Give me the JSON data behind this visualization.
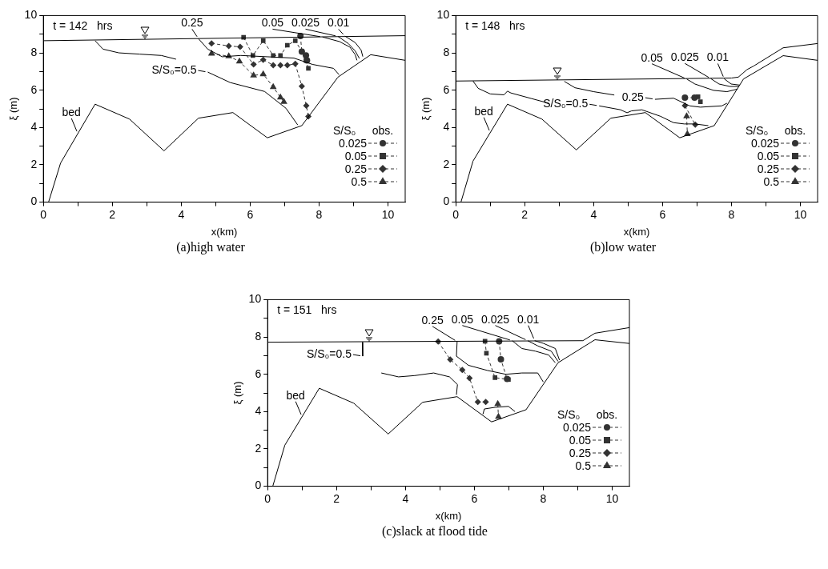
{
  "chart_data": [
    {
      "type": "line",
      "title": "(a)high water",
      "xlabel": "x(km)",
      "ylabel": "ξ (m)",
      "legend_title": "S/S₀",
      "legend": "bottom right",
      "xlim": [
        0,
        10.5
      ],
      "ylim": [
        0,
        10
      ],
      "xticks": [
        0,
        {
          "value": 1,
          "label": null
        },
        2,
        {
          "value": 3,
          "label": null
        },
        4,
        {
          "value": 5,
          "label": null
        },
        6,
        {
          "value": 7,
          "label": null
        },
        8,
        {
          "value": 9,
          "label": null
        },
        10
      ],
      "yticks": [
        0,
        {
          "value": 1,
          "label": null
        },
        2,
        {
          "value": 3,
          "label": null
        },
        4,
        {
          "value": 5,
          "label": null
        },
        6,
        {
          "value": 7,
          "label": null
        },
        8,
        {
          "value": 9,
          "label": null
        },
        10
      ],
      "annotations": [
        "t = 142   hrs",
        "obs.",
        {
          "text": "0.25",
          "x": 4.5,
          "y": 8.76
        },
        {
          "text": "0.05",
          "x": 8.1,
          "y": 8.85
        },
        {
          "text": "0.025",
          "x": 8.55,
          "y": 8.88
        },
        {
          "text": "0.01",
          "x": 8.75,
          "y": 8.9
        },
        {
          "text": "S/S₀=0.5",
          "x": 4.77,
          "y": 6.97
        },
        {
          "text": "bed",
          "x": 1.0,
          "y": 3.675
        }
      ],
      "series": [
        {
          "color": "#000000",
          "marker": "none",
          "line_style": "solid",
          "x": [
            0,
            10.5
          ],
          "values": [
            8.65,
            8.92
          ]
        },
        {
          "color": "#000000",
          "marker": "none",
          "line_style": "solid",
          "x": [
            0.15,
            0.5,
            1.5,
            2.5,
            3.5,
            4.5,
            5.5,
            6.5,
            7.5,
            8.55,
            9.5,
            10.5
          ],
          "values": [
            0,
            2.1,
            5.25,
            4.45,
            2.75,
            4.5,
            4.8,
            3.45,
            4.1,
            6.7,
            7.9,
            7.6
          ]
        },
        {
          "color": "#000000",
          "marker": "none",
          "line_style": "solid",
          "x": [
            1.5,
            1.73,
            2.19,
            2.8,
            3.42,
            3.85,
            null,
            4.77,
            5.42,
            6.42,
            7.04,
            7.38
          ],
          "values": [
            8.65,
            8.2,
            8.0,
            7.93,
            7.86,
            7.66,
            null,
            6.97,
            6.41,
            5.93,
            5.03,
            4.14
          ]
        },
        {
          "color": "#000000",
          "marker": "none",
          "line_style": "solid",
          "x": [
            4.5,
            4.77,
            5.19,
            5.73,
            6.5,
            7.27,
            7.81,
            8.42,
            8.58
          ],
          "values": [
            8.76,
            8.2,
            7.79,
            7.86,
            7.79,
            7.72,
            7.38,
            7.17,
            6.83
          ]
        },
        {
          "color": "#000000",
          "marker": "none",
          "line_style": "solid",
          "x": [
            8.1,
            8.6,
            8.9,
            9.05,
            9.1
          ],
          "values": [
            8.85,
            8.6,
            8.3,
            7.9,
            7.6
          ]
        },
        {
          "color": "#000000",
          "marker": "none",
          "line_style": "solid",
          "x": [
            8.55,
            8.85,
            9.05,
            9.17
          ],
          "values": [
            8.88,
            8.5,
            8.1,
            7.7
          ]
        },
        {
          "color": "#000000",
          "marker": "none",
          "line_style": "solid",
          "x": [
            8.75,
            9.05,
            9.22,
            9.27
          ],
          "values": [
            8.9,
            8.55,
            8.15,
            7.8
          ]
        },
        {
          "name": "0.025",
          "color": "#333333",
          "marker": "circle",
          "line_style": "dashed",
          "x": [
            7.46,
            7.5,
            7.62,
            7.65
          ],
          "values": [
            8.9,
            8.07,
            7.86,
            7.59
          ]
        },
        {
          "name": "0.05",
          "color": "#333333",
          "marker": "square",
          "line_style": "dashed",
          "x": [
            5.81,
            6.08,
            6.38,
            6.67,
            6.88,
            7.08,
            7.31,
            7.5,
            7.62,
            7.69
          ],
          "values": [
            8.83,
            7.86,
            8.65,
            7.86,
            7.86,
            8.41,
            8.65,
            8.07,
            7.59,
            7.17
          ]
        },
        {
          "name": "0.25",
          "color": "#333333",
          "marker": "diamond",
          "line_style": "dashed",
          "x": [
            4.88,
            5.38,
            5.71,
            6.1,
            6.38,
            6.67,
            6.88,
            7.08,
            7.31,
            7.5,
            7.63,
            7.69
          ],
          "values": [
            8.51,
            8.37,
            8.32,
            7.38,
            7.63,
            7.34,
            7.34,
            7.34,
            7.41,
            6.21,
            5.17,
            4.59
          ]
        },
        {
          "name": "0.5",
          "color": "#333333",
          "marker": "triangle",
          "line_style": "dashed",
          "x": [
            4.88,
            5.38,
            5.69,
            6.1,
            6.38,
            6.67,
            6.88,
            6.98
          ],
          "values": [
            7.96,
            7.82,
            7.54,
            6.79,
            6.86,
            6.17,
            5.61,
            5.38
          ]
        }
      ]
    },
    {
      "type": "line",
      "title": "(b)low water",
      "xlabel": "x(km)",
      "ylabel": "ξ (m)",
      "legend_title": "S/S₀",
      "legend": "bottom right",
      "xlim": [
        0,
        10.5
      ],
      "ylim": [
        0,
        10
      ],
      "xticks": [
        0,
        {
          "value": 1,
          "label": null
        },
        2,
        {
          "value": 3,
          "label": null
        },
        4,
        {
          "value": 5,
          "label": null
        },
        6,
        {
          "value": 7,
          "label": null
        },
        8,
        {
          "value": 9,
          "label": null
        },
        10
      ],
      "yticks": [
        0,
        {
          "value": 1,
          "label": null
        },
        2,
        {
          "value": 3,
          "label": null
        },
        4,
        {
          "value": 5,
          "label": null
        },
        6,
        {
          "value": 7,
          "label": null
        },
        8,
        {
          "value": 9,
          "label": null
        },
        10
      ],
      "annotations": [
        "t = 148   hrs",
        "obs.",
        {
          "text": "0.25",
          "x": 5.78,
          "y": 5.51
        },
        {
          "text": "0.05",
          "x": 6.7,
          "y": 6.6
        },
        {
          "text": "0.025",
          "x": 7.4,
          "y": 6.62
        },
        {
          "text": "0.01",
          "x": 7.79,
          "y": 6.61
        },
        {
          "text": "S/S₀=0.5",
          "x": 4.16,
          "y": 5.16
        },
        {
          "text": "bed",
          "x": 1.0,
          "y": 3.725
        }
      ],
      "series": [
        {
          "color": "#000000",
          "marker": "none",
          "line_style": "solid",
          "x": [
            0,
            8.0,
            8.2,
            8.45,
            8.65,
            9.5,
            10.5
          ],
          "values": [
            6.49,
            6.65,
            6.7,
            7.1,
            7.3,
            8.27,
            8.5
          ]
        },
        {
          "color": "#000000",
          "marker": "none",
          "line_style": "solid",
          "x": [
            0.15,
            0.5,
            1.5,
            2.5,
            3.5,
            4.5,
            5.5,
            6.5,
            7.5,
            8.35,
            9.5,
            10.5
          ],
          "values": [
            0,
            2.2,
            5.25,
            4.45,
            2.8,
            4.5,
            4.8,
            3.45,
            4.1,
            6.6,
            7.85,
            7.6
          ]
        },
        {
          "color": "#000000",
          "marker": "none",
          "line_style": "solid",
          "x": [
            0.5,
            0.65,
            1.0,
            1.4,
            1.5,
            1.6,
            2.2,
            2.7,
            null,
            4.16,
            4.78,
            4.97,
            5.1,
            5.4,
            5.94,
            6.32,
            6.63,
            6.94,
            7.33
          ],
          "values": [
            6.49,
            6.1,
            5.8,
            5.75,
            5.95,
            5.85,
            5.55,
            5.3,
            null,
            5.16,
            4.95,
            4.79,
            4.89,
            4.95,
            4.6,
            4.26,
            4.19,
            4.19,
            4.1
          ]
        },
        {
          "color": "#000000",
          "marker": "none",
          "line_style": "solid",
          "x": [
            3.15,
            3.46,
            4.0,
            4.6,
            null,
            5.78,
            6.32,
            6.79,
            7.1,
            7.72,
            7.87
          ],
          "values": [
            6.47,
            6.13,
            5.92,
            5.74,
            null,
            5.51,
            5.57,
            5.16,
            5.09,
            5.16,
            5.3
          ]
        },
        {
          "color": "#000000",
          "marker": "none",
          "line_style": "solid",
          "x": [
            6.7,
            6.94,
            7.48,
            7.87,
            8.18
          ],
          "values": [
            6.6,
            6.33,
            5.99,
            5.92,
            6.06
          ]
        },
        {
          "color": "#000000",
          "marker": "none",
          "line_style": "solid",
          "x": [
            7.4,
            7.64,
            7.95,
            8.22
          ],
          "values": [
            6.62,
            6.33,
            6.2,
            6.2
          ]
        },
        {
          "color": "#000000",
          "marker": "none",
          "line_style": "solid",
          "x": [
            7.79,
            7.99,
            8.25
          ],
          "values": [
            6.61,
            6.33,
            6.27
          ]
        },
        {
          "name": "0.025",
          "color": "#333333",
          "marker": "circle",
          "line_style": "dashed",
          "x": [
            6.65,
            6.93
          ],
          "values": [
            5.6,
            5.6
          ]
        },
        {
          "name": "0.05",
          "color": "#333333",
          "marker": "square",
          "line_style": "dashed",
          "x": [
            7.03,
            7.1
          ],
          "values": [
            5.65,
            5.38
          ]
        },
        {
          "name": "0.25",
          "color": "#333333",
          "marker": "diamond",
          "line_style": "dashed",
          "x": [
            6.65,
            6.95
          ],
          "values": [
            5.17,
            4.15
          ]
        },
        {
          "name": "0.5",
          "color": "#333333",
          "marker": "triangle",
          "line_style": "dashed",
          "x": [
            6.7,
            6.72
          ],
          "values": [
            4.6,
            3.65
          ]
        }
      ]
    },
    {
      "type": "line",
      "title": "(c)slack at flood tide",
      "xlabel": "x(km)",
      "ylabel": "ξ (m)",
      "legend_title": "S/S₀",
      "legend": "bottom right",
      "xlim": [
        0,
        10.5
      ],
      "ylim": [
        0,
        10
      ],
      "xticks": [
        0,
        {
          "value": 1,
          "label": null
        },
        2,
        {
          "value": 3,
          "label": null
        },
        4,
        {
          "value": 5,
          "label": null
        },
        6,
        {
          "value": 7,
          "label": null
        },
        8,
        {
          "value": 9,
          "label": null
        },
        10
      ],
      "yticks": [
        0,
        {
          "value": 1,
          "label": null
        },
        2,
        {
          "value": 3,
          "label": null
        },
        4,
        {
          "value": 5,
          "label": null
        },
        6,
        {
          "value": 7,
          "label": null
        },
        8,
        {
          "value": 9,
          "label": null
        },
        10
      ],
      "annotations": [
        "t = 151   hrs",
        "obs.",
        {
          "text": "0.25",
          "x": 5.5,
          "y": 7.75
        },
        {
          "text": "0.05",
          "x": 7.1,
          "y": 7.8
        },
        {
          "text": "0.025",
          "x": 7.55,
          "y": 7.8
        },
        {
          "text": "0.01",
          "x": 7.75,
          "y": 7.8
        },
        {
          "text": "S/S₀=0.5",
          "x": 2.76,
          "y": 6.97
        },
        {
          "text": "bed",
          "x": 1.0,
          "y": 3.725
        }
      ],
      "series": [
        {
          "color": "#000000",
          "marker": "none",
          "line_style": "solid",
          "x": [
            0,
            9.15,
            9.5,
            10.5
          ],
          "values": [
            7.72,
            7.8,
            8.2,
            8.5
          ]
        },
        {
          "color": "#000000",
          "marker": "none",
          "line_style": "solid",
          "x": [
            0.15,
            0.5,
            1.5,
            2.5,
            3.5,
            4.5,
            5.5,
            6.5,
            7.5,
            8.43,
            9.5,
            10.5
          ],
          "values": [
            0,
            2.2,
            5.25,
            4.45,
            2.8,
            4.5,
            4.8,
            3.45,
            4.1,
            6.62,
            7.85,
            7.65
          ]
        },
        {
          "color": "#000000",
          "marker": "none",
          "line_style": "solid",
          "x": [
            2.75,
            2.76,
            null,
            3.3,
            3.8,
            4.27,
            4.82,
            5.28,
            5.51,
            5.48,
            null,
            6.25,
            6.29,
            6.6,
            6.99,
            7.18
          ],
          "values": [
            7.72,
            6.97,
            null,
            6.07,
            5.86,
            5.93,
            6.07,
            5.86,
            5.45,
            4.9,
            null,
            3.86,
            4.14,
            4.23,
            4.28,
            4.0
          ]
        },
        {
          "color": "#000000",
          "marker": "none",
          "line_style": "solid",
          "x": [
            5.5,
            5.48,
            5.83,
            6.37,
            6.91,
            7.38,
            7.84,
            8.0
          ],
          "values": [
            7.75,
            6.97,
            6.48,
            6.21,
            6.0,
            6.07,
            6.07,
            5.59
          ]
        },
        {
          "color": "#000000",
          "marker": "none",
          "line_style": "solid",
          "x": [
            7.1,
            7.38,
            7.77,
            8.16,
            8.35
          ],
          "values": [
            7.8,
            7.38,
            7.24,
            7.03,
            6.62
          ]
        },
        {
          "color": "#000000",
          "marker": "none",
          "line_style": "solid",
          "x": [
            7.55,
            7.84,
            8.23,
            8.43
          ],
          "values": [
            7.8,
            7.52,
            7.24,
            6.69
          ]
        },
        {
          "color": "#000000",
          "marker": "none",
          "line_style": "solid",
          "x": [
            7.75,
            8.0,
            8.35,
            8.47
          ],
          "values": [
            7.8,
            7.66,
            7.38,
            6.76
          ]
        },
        {
          "name": "0.025",
          "color": "#333333",
          "marker": "circle",
          "line_style": "dashed",
          "x": [
            6.72,
            6.77,
            6.95
          ],
          "values": [
            7.77,
            6.8,
            5.75
          ]
        },
        {
          "name": "0.05",
          "color": "#333333",
          "marker": "square",
          "line_style": "dashed",
          "x": [
            6.31,
            6.35,
            6.6,
            6.99
          ],
          "values": [
            7.77,
            7.13,
            5.82,
            5.72
          ]
        },
        {
          "name": "0.25",
          "color": "#333333",
          "marker": "diamond",
          "line_style": "dashed",
          "x": [
            4.95,
            5.3,
            5.65,
            5.86,
            6.1,
            6.33
          ],
          "values": [
            7.75,
            6.79,
            6.23,
            5.79,
            4.52,
            4.52
          ]
        },
        {
          "name": "0.5",
          "color": "#333333",
          "marker": "triangle",
          "line_style": "dashed",
          "x": [
            6.68,
            6.7
          ],
          "values": [
            4.41,
            3.72
          ]
        }
      ]
    }
  ]
}
